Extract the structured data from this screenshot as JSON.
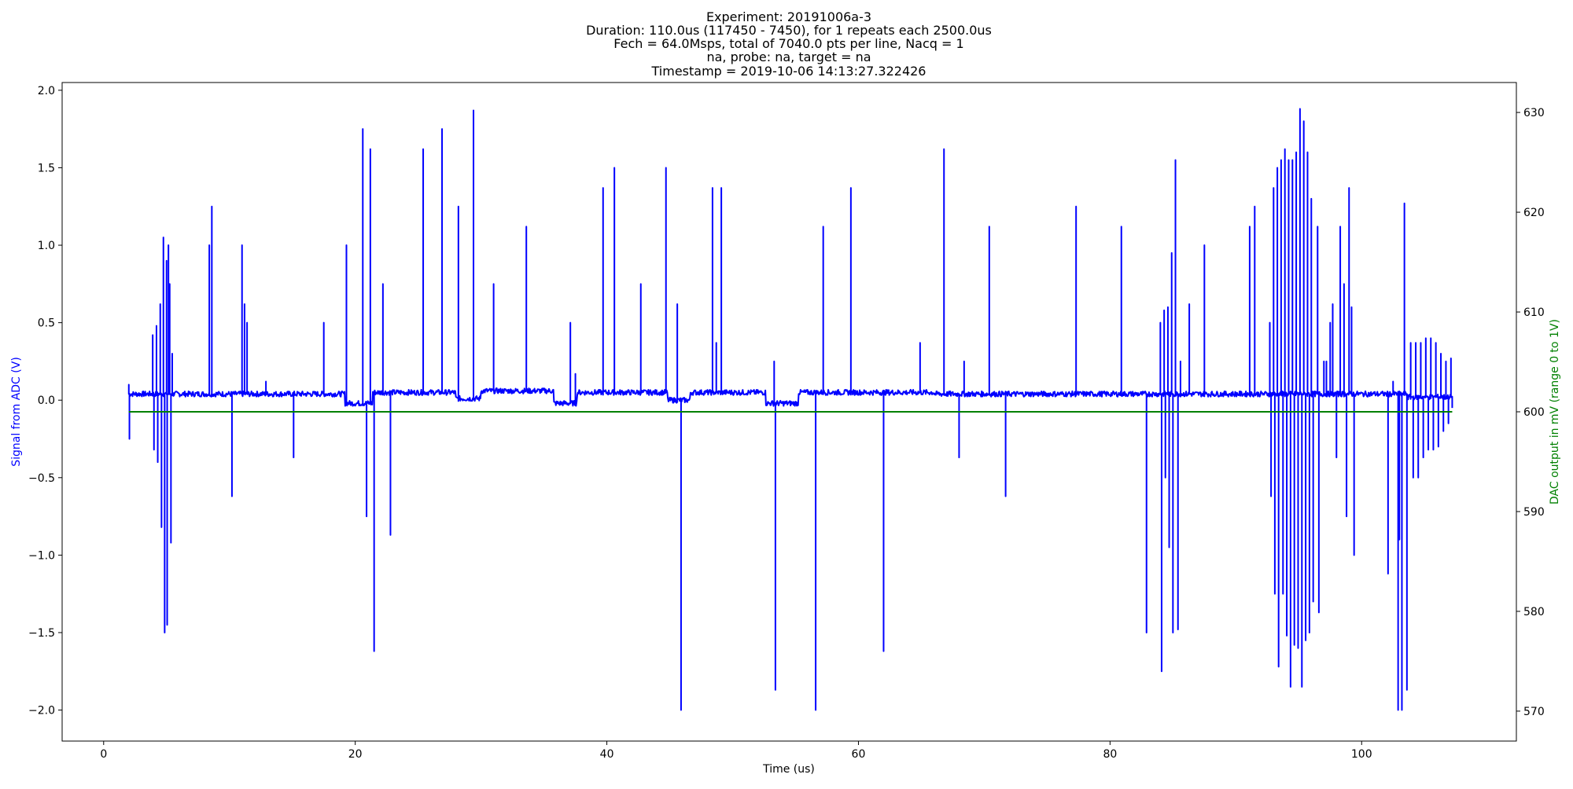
{
  "chart_data": {
    "type": "line",
    "title_lines": [
      "Experiment: 20191006a-3",
      "Duration: 110.0us (117450 - 7450), for 1 repeats each 2500.0us",
      "Fech = 64.0Msps, total of 7040.0 pts per line, Nacq = 1",
      "na, probe: na, target = na",
      "Timestamp = 2019-10-06 14:13:27.322426"
    ],
    "xlabel": "Time (us)",
    "ylabel": "Signal from ADC (V)",
    "ylabel_right": "DAC output in mV (range 0 to 1V)",
    "xlim": [
      -3.3,
      112.3
    ],
    "ylim": [
      -2.2,
      2.05
    ],
    "ylim_right": [
      567,
      633
    ],
    "x_ticks": [
      0,
      20,
      40,
      60,
      80,
      100
    ],
    "y_ticks": [
      -2.0,
      -1.5,
      -1.0,
      -0.5,
      0.0,
      0.5,
      1.0,
      1.5,
      2.0
    ],
    "y_ticks_right": [
      570,
      580,
      590,
      600,
      610,
      620,
      630
    ],
    "grid": false,
    "colors": {
      "signal": "#0000ff",
      "dac": "#008000",
      "axis": "#000000"
    },
    "series": [
      {
        "axis": "left",
        "baseline": 0.04,
        "x_range": [
          2.0,
          107.2
        ],
        "baseline_segments": [
          {
            "x": [
              2.0,
              19.2
            ],
            "y": 0.04
          },
          {
            "x": [
              19.2,
              21.4
            ],
            "y": -0.02
          },
          {
            "x": [
              21.4,
              28.0
            ],
            "y": 0.05
          },
          {
            "x": [
              28.0,
              30.0
            ],
            "y": 0.01
          },
          {
            "x": [
              30.0,
              35.8
            ],
            "y": 0.06
          },
          {
            "x": [
              35.8,
              37.6
            ],
            "y": -0.02
          },
          {
            "x": [
              37.6,
              44.8
            ],
            "y": 0.05
          },
          {
            "x": [
              44.8,
              46.6
            ],
            "y": 0.0
          },
          {
            "x": [
              46.6,
              52.6
            ],
            "y": 0.05
          },
          {
            "x": [
              52.6,
              55.2
            ],
            "y": -0.02
          },
          {
            "x": [
              55.2,
              66.0
            ],
            "y": 0.05
          },
          {
            "x": [
              66.0,
              75.0
            ],
            "y": 0.04
          },
          {
            "x": [
              75.0,
              103.6
            ],
            "y": 0.04
          },
          {
            "x": [
              103.6,
              107.2
            ],
            "y": 0.02
          }
        ],
        "spikes": [
          {
            "x": 2.0,
            "y": 0.1
          },
          {
            "x": 2.05,
            "y": -0.25
          },
          {
            "x": 3.9,
            "y": 0.42
          },
          {
            "x": 4.0,
            "y": -0.32
          },
          {
            "x": 4.2,
            "y": 0.48
          },
          {
            "x": 4.3,
            "y": -0.4
          },
          {
            "x": 4.5,
            "y": 0.62
          },
          {
            "x": 4.6,
            "y": -0.82
          },
          {
            "x": 4.75,
            "y": 1.05
          },
          {
            "x": 4.85,
            "y": -1.5
          },
          {
            "x": 5.0,
            "y": 0.9
          },
          {
            "x": 5.05,
            "y": -1.45
          },
          {
            "x": 5.15,
            "y": 1.0
          },
          {
            "x": 5.25,
            "y": 0.75
          },
          {
            "x": 5.35,
            "y": -0.92
          },
          {
            "x": 5.45,
            "y": 0.3
          },
          {
            "x": 8.4,
            "y": 1.0
          },
          {
            "x": 8.6,
            "y": 1.25
          },
          {
            "x": 10.2,
            "y": -0.62
          },
          {
            "x": 11.0,
            "y": 1.0
          },
          {
            "x": 11.2,
            "y": 0.62
          },
          {
            "x": 11.4,
            "y": 0.5
          },
          {
            "x": 12.9,
            "y": 0.12
          },
          {
            "x": 15.1,
            "y": -0.37
          },
          {
            "x": 17.5,
            "y": 0.5
          },
          {
            "x": 19.3,
            "y": 1.0
          },
          {
            "x": 20.6,
            "y": 1.75
          },
          {
            "x": 20.9,
            "y": -0.75
          },
          {
            "x": 21.2,
            "y": 1.62
          },
          {
            "x": 21.5,
            "y": -1.62
          },
          {
            "x": 22.2,
            "y": 0.75
          },
          {
            "x": 22.8,
            "y": -0.87
          },
          {
            "x": 25.4,
            "y": 1.62
          },
          {
            "x": 26.9,
            "y": 1.75
          },
          {
            "x": 28.2,
            "y": 1.25
          },
          {
            "x": 29.4,
            "y": 1.87
          },
          {
            "x": 31.0,
            "y": 0.75
          },
          {
            "x": 33.6,
            "y": 1.12
          },
          {
            "x": 37.1,
            "y": 0.5
          },
          {
            "x": 37.5,
            "y": 0.17
          },
          {
            "x": 39.7,
            "y": 1.37
          },
          {
            "x": 40.6,
            "y": 1.5
          },
          {
            "x": 42.7,
            "y": 0.75
          },
          {
            "x": 44.7,
            "y": 1.5
          },
          {
            "x": 45.6,
            "y": 0.62
          },
          {
            "x": 45.9,
            "y": -2.0
          },
          {
            "x": 48.4,
            "y": 1.37
          },
          {
            "x": 48.7,
            "y": 0.37
          },
          {
            "x": 49.1,
            "y": 1.37
          },
          {
            "x": 53.3,
            "y": 0.25
          },
          {
            "x": 53.4,
            "y": -1.87
          },
          {
            "x": 56.6,
            "y": -2.0
          },
          {
            "x": 57.2,
            "y": 1.12
          },
          {
            "x": 59.4,
            "y": 1.37
          },
          {
            "x": 62.0,
            "y": -1.62
          },
          {
            "x": 64.9,
            "y": 0.37
          },
          {
            "x": 66.8,
            "y": 1.62
          },
          {
            "x": 68.0,
            "y": -0.37
          },
          {
            "x": 68.4,
            "y": 0.25
          },
          {
            "x": 70.4,
            "y": 1.12
          },
          {
            "x": 71.7,
            "y": -0.62
          },
          {
            "x": 77.3,
            "y": 1.25
          },
          {
            "x": 80.9,
            "y": 1.12
          },
          {
            "x": 82.9,
            "y": -1.5
          },
          {
            "x": 84.0,
            "y": 0.5
          },
          {
            "x": 84.1,
            "y": -1.75
          },
          {
            "x": 84.3,
            "y": 0.58
          },
          {
            "x": 84.4,
            "y": -0.5
          },
          {
            "x": 84.6,
            "y": 0.6
          },
          {
            "x": 84.7,
            "y": -0.95
          },
          {
            "x": 84.9,
            "y": 0.95
          },
          {
            "x": 85.0,
            "y": -1.5
          },
          {
            "x": 85.2,
            "y": 1.55
          },
          {
            "x": 85.4,
            "y": -1.48
          },
          {
            "x": 85.6,
            "y": 0.25
          },
          {
            "x": 86.3,
            "y": 0.62
          },
          {
            "x": 87.5,
            "y": 1.0
          },
          {
            "x": 91.1,
            "y": 1.12
          },
          {
            "x": 91.5,
            "y": 1.25
          },
          {
            "x": 92.7,
            "y": 0.5
          },
          {
            "x": 92.8,
            "y": -0.62
          },
          {
            "x": 93.0,
            "y": 1.37
          },
          {
            "x": 93.1,
            "y": -1.25
          },
          {
            "x": 93.3,
            "y": 1.5
          },
          {
            "x": 93.4,
            "y": -1.72
          },
          {
            "x": 93.6,
            "y": 1.55
          },
          {
            "x": 93.75,
            "y": -1.25
          },
          {
            "x": 93.9,
            "y": 1.62
          },
          {
            "x": 94.05,
            "y": -1.52
          },
          {
            "x": 94.2,
            "y": 1.55
          },
          {
            "x": 94.35,
            "y": -1.85
          },
          {
            "x": 94.5,
            "y": 1.55
          },
          {
            "x": 94.65,
            "y": -1.58
          },
          {
            "x": 94.8,
            "y": 1.6
          },
          {
            "x": 94.95,
            "y": -1.6
          },
          {
            "x": 95.1,
            "y": 1.88
          },
          {
            "x": 95.25,
            "y": -1.85
          },
          {
            "x": 95.4,
            "y": 1.8
          },
          {
            "x": 95.55,
            "y": -1.55
          },
          {
            "x": 95.7,
            "y": 1.6
          },
          {
            "x": 95.85,
            "y": -1.5
          },
          {
            "x": 96.0,
            "y": 1.3
          },
          {
            "x": 96.15,
            "y": -1.3
          },
          {
            "x": 96.5,
            "y": 1.12
          },
          {
            "x": 96.6,
            "y": -1.37
          },
          {
            "x": 97.0,
            "y": 0.25
          },
          {
            "x": 97.2,
            "y": 0.25
          },
          {
            "x": 97.5,
            "y": 0.5
          },
          {
            "x": 97.7,
            "y": 0.62
          },
          {
            "x": 98.0,
            "y": -0.37
          },
          {
            "x": 98.3,
            "y": 1.12
          },
          {
            "x": 98.6,
            "y": 0.75
          },
          {
            "x": 98.8,
            "y": -0.75
          },
          {
            "x": 99.0,
            "y": 1.37
          },
          {
            "x": 99.2,
            "y": 0.6
          },
          {
            "x": 99.4,
            "y": -1.0
          },
          {
            "x": 102.1,
            "y": -1.12
          },
          {
            "x": 102.5,
            "y": 0.12
          },
          {
            "x": 102.9,
            "y": -2.0
          },
          {
            "x": 103.0,
            "y": -0.9
          },
          {
            "x": 103.2,
            "y": -2.0
          },
          {
            "x": 103.4,
            "y": 1.27
          },
          {
            "x": 103.6,
            "y": -1.87
          },
          {
            "x": 103.9,
            "y": 0.37
          },
          {
            "x": 104.1,
            "y": -0.5
          },
          {
            "x": 104.3,
            "y": 0.37
          },
          {
            "x": 104.5,
            "y": -0.5
          },
          {
            "x": 104.7,
            "y": 0.37
          },
          {
            "x": 104.9,
            "y": -0.37
          },
          {
            "x": 105.1,
            "y": 0.4
          },
          {
            "x": 105.3,
            "y": -0.32
          },
          {
            "x": 105.5,
            "y": 0.4
          },
          {
            "x": 105.7,
            "y": -0.32
          },
          {
            "x": 105.9,
            "y": 0.37
          },
          {
            "x": 106.1,
            "y": -0.3
          },
          {
            "x": 106.3,
            "y": 0.3
          },
          {
            "x": 106.5,
            "y": -0.2
          },
          {
            "x": 106.7,
            "y": 0.25
          },
          {
            "x": 106.9,
            "y": -0.15
          },
          {
            "x": 107.1,
            "y": 0.27
          },
          {
            "x": 107.2,
            "y": -0.05
          }
        ]
      },
      {
        "axis": "right",
        "x": [
          2.0,
          107.2
        ],
        "y": [
          600,
          600
        ]
      }
    ]
  }
}
